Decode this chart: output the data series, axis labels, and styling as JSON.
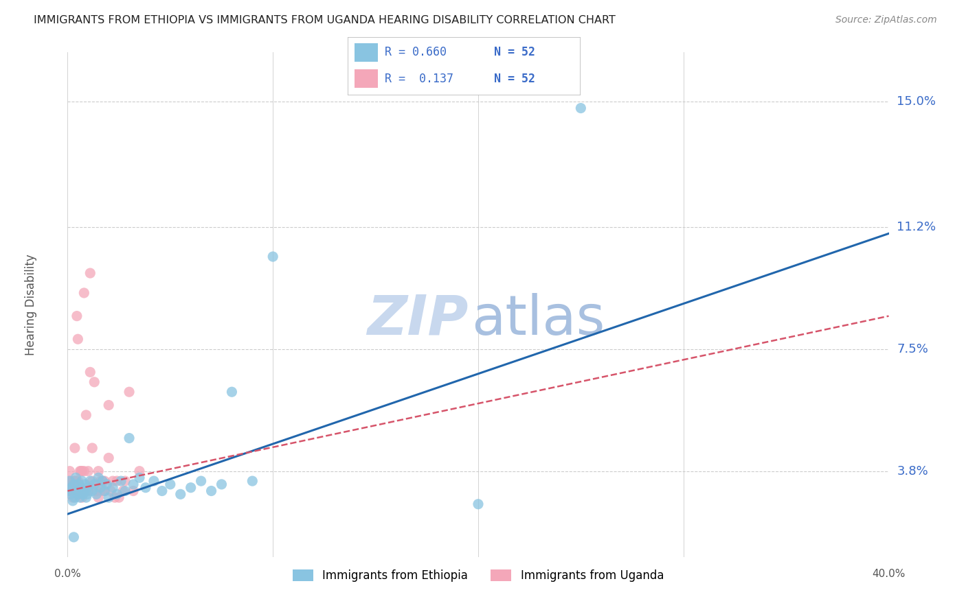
{
  "title": "IMMIGRANTS FROM ETHIOPIA VS IMMIGRANTS FROM UGANDA HEARING DISABILITY CORRELATION CHART",
  "source": "Source: ZipAtlas.com",
  "ylabel": "Hearing Disability",
  "yticks_labels": [
    "3.8%",
    "7.5%",
    "11.2%",
    "15.0%"
  ],
  "ytick_vals": [
    3.8,
    7.5,
    11.2,
    15.0
  ],
  "xmin": 0.0,
  "xmax": 40.0,
  "ymin": 1.2,
  "ymax": 16.5,
  "legend_R_blue": "0.660",
  "legend_R_pink": "0.137",
  "legend_N": "52",
  "blue_color": "#89c4e1",
  "pink_color": "#f4a7b9",
  "trend_blue_color": "#2166ac",
  "trend_pink_color": "#d6546a",
  "watermark_zip_color": "#c8d8ee",
  "watermark_atlas_color": "#a8c0e0",
  "eth_trend_x0": 0.0,
  "eth_trend_y0": 2.5,
  "eth_trend_x1": 40.0,
  "eth_trend_y1": 11.0,
  "uga_trend_x0": 0.0,
  "uga_trend_y0": 3.2,
  "uga_trend_x1": 40.0,
  "uga_trend_y1": 8.5,
  "ethiopia_scatter_x": [
    0.05,
    0.1,
    0.15,
    0.2,
    0.25,
    0.3,
    0.35,
    0.4,
    0.45,
    0.5,
    0.55,
    0.6,
    0.65,
    0.7,
    0.75,
    0.8,
    0.85,
    0.9,
    0.95,
    1.0,
    1.1,
    1.2,
    1.3,
    1.4,
    1.5,
    1.6,
    1.7,
    1.8,
    1.9,
    2.0,
    2.2,
    2.4,
    2.6,
    2.8,
    3.0,
    3.2,
    3.5,
    3.8,
    4.2,
    4.6,
    5.0,
    5.5,
    6.0,
    6.5,
    7.0,
    7.5,
    8.0,
    9.0,
    10.0,
    20.0,
    25.0,
    0.3
  ],
  "ethiopia_scatter_y": [
    3.2,
    3.5,
    3.1,
    3.3,
    2.9,
    3.4,
    3.0,
    3.6,
    3.2,
    3.1,
    3.4,
    3.0,
    3.3,
    3.5,
    3.1,
    3.2,
    3.4,
    3.0,
    3.1,
    3.3,
    3.5,
    3.2,
    3.4,
    3.1,
    3.6,
    3.3,
    3.5,
    3.2,
    3.4,
    3.0,
    3.3,
    3.1,
    3.5,
    3.2,
    4.8,
    3.4,
    3.6,
    3.3,
    3.5,
    3.2,
    3.4,
    3.1,
    3.3,
    3.5,
    3.2,
    3.4,
    6.2,
    3.5,
    10.3,
    2.8,
    14.8,
    1.8
  ],
  "uganda_scatter_x": [
    0.05,
    0.1,
    0.15,
    0.2,
    0.25,
    0.3,
    0.35,
    0.4,
    0.45,
    0.5,
    0.55,
    0.6,
    0.65,
    0.7,
    0.8,
    0.9,
    1.0,
    1.1,
    1.2,
    1.4,
    1.5,
    1.6,
    1.8,
    2.0,
    2.2,
    2.5,
    2.8,
    3.2,
    0.3,
    0.6,
    0.9,
    1.2,
    1.5,
    1.8,
    2.1,
    0.4,
    0.8,
    1.0,
    1.3,
    1.7,
    2.3,
    2.7,
    3.5,
    0.5,
    0.7,
    1.1,
    1.6,
    2.0,
    2.4,
    3.0,
    0.2,
    0.45
  ],
  "uganda_scatter_y": [
    3.5,
    3.8,
    3.2,
    3.5,
    3.0,
    3.4,
    4.5,
    3.5,
    3.2,
    7.8,
    3.4,
    3.1,
    3.8,
    3.0,
    9.2,
    5.5,
    3.8,
    9.8,
    3.5,
    3.2,
    3.8,
    3.5,
    3.2,
    4.2,
    3.5,
    3.0,
    3.5,
    3.2,
    3.5,
    3.8,
    3.2,
    4.5,
    3.0,
    3.5,
    3.2,
    3.5,
    3.8,
    3.2,
    6.5,
    3.5,
    3.0,
    3.2,
    3.8,
    3.5,
    3.8,
    6.8,
    3.2,
    5.8,
    3.5,
    6.2,
    3.2,
    8.5
  ]
}
